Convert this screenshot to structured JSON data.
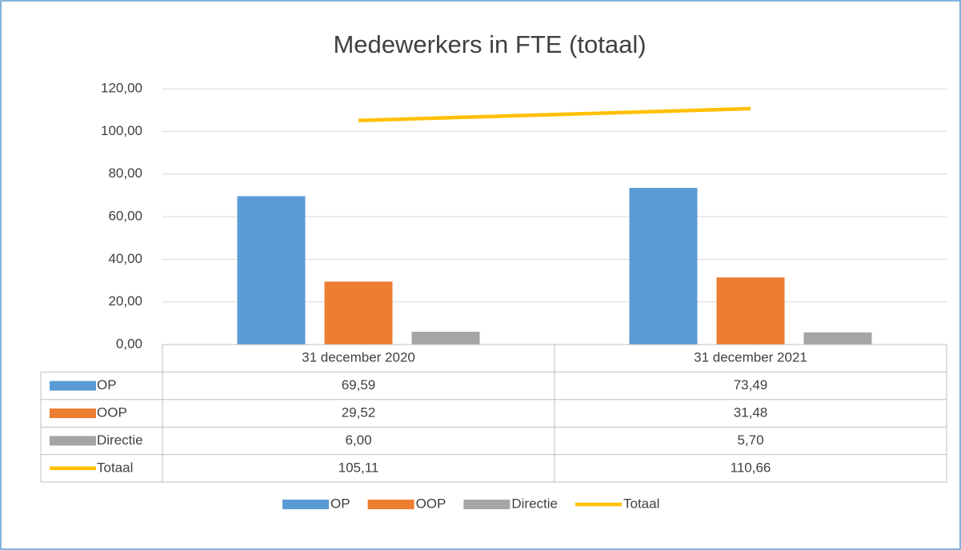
{
  "chart_data": {
    "type": "bar",
    "title": "Medewerkers in FTE (totaal)",
    "categories": [
      "31 december 2020",
      "31 december 2021"
    ],
    "series": [
      {
        "name": "OP",
        "type": "bar",
        "color": "#5b9bd5",
        "values": [
          69.59,
          73.49
        ],
        "value_labels": [
          "69,59",
          "73,49"
        ]
      },
      {
        "name": "OOP",
        "type": "bar",
        "color": "#ed7d31",
        "values": [
          29.52,
          31.48
        ],
        "value_labels": [
          "29,52",
          "31,48"
        ]
      },
      {
        "name": "Directie",
        "type": "bar",
        "color": "#a5a5a5",
        "values": [
          6.0,
          5.7
        ],
        "value_labels": [
          "6,00",
          "5,70"
        ]
      },
      {
        "name": "Totaal",
        "type": "line",
        "color": "#ffc000",
        "values": [
          105.11,
          110.66
        ],
        "value_labels": [
          "105,11",
          "110,66"
        ]
      }
    ],
    "ylim": [
      0,
      120
    ],
    "yticks": [
      {
        "value": 0,
        "label": "0,00"
      },
      {
        "value": 20,
        "label": "20,00"
      },
      {
        "value": 40,
        "label": "40,00"
      },
      {
        "value": 60,
        "label": "60,00"
      },
      {
        "value": 80,
        "label": "80,00"
      },
      {
        "value": 100,
        "label": "100,00"
      },
      {
        "value": 120,
        "label": "120,00"
      }
    ],
    "grid": true,
    "legend": "bottom"
  }
}
